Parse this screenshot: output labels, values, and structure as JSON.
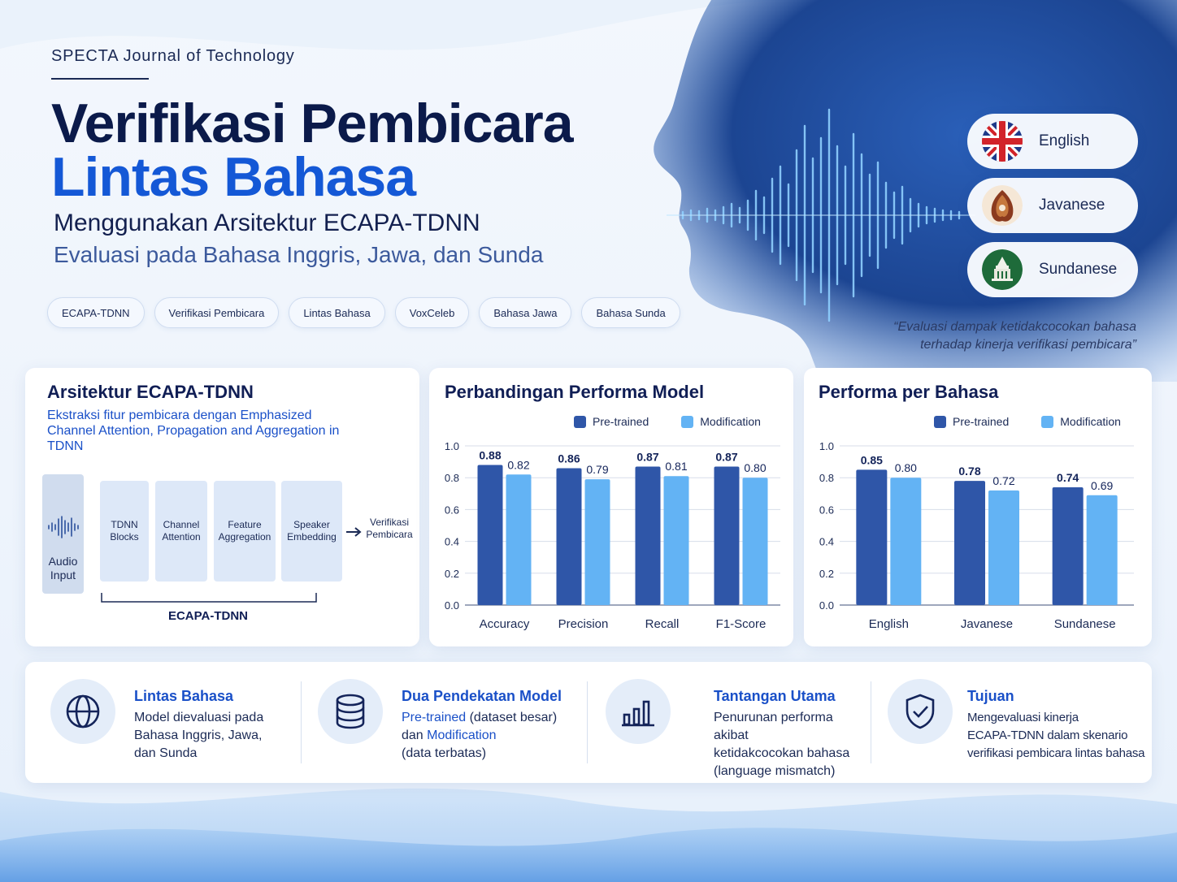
{
  "colors": {
    "navy": "#0b1a4a",
    "brand_blue": "#1458d6",
    "pretrained": "#2f56a8",
    "modification": "#63b3f4"
  },
  "header": {
    "journal": "SPECTA Journal of Technology",
    "title_line1": "Verifikasi Pembicara",
    "title_line2": "Lintas Bahasa",
    "subtitle1": "Menggunakan Arsitektur ECAPA-TDNN",
    "subtitle2": "Evaluasi pada Bahasa Inggris, Jawa, dan Sunda"
  },
  "tags": [
    "ECAPA-TDNN",
    "Verifikasi Pembicara",
    "Lintas Bahasa",
    "VoxCeleb",
    "Bahasa Jawa",
    "Bahasa Sunda"
  ],
  "languages": [
    {
      "label": "English",
      "icon": "uk-flag-icon"
    },
    {
      "label": "Javanese",
      "icon": "javanese-gunungan-icon"
    },
    {
      "label": "Sundanese",
      "icon": "sundanese-emblem-icon"
    }
  ],
  "quote": "“Evaluasi dampak ketidakcocokan bahasa terhadap kinerja verifikasi pembicara”",
  "architecture": {
    "title": "Arsitektur ECAPA-TDNN",
    "description": "Ekstraksi fitur pembicara dengan Emphasized Channel Attention, Propagation and Aggregation in TDNN",
    "input_label": "Audio Input",
    "blocks": [
      "TDNN Blocks",
      "Channel Attention",
      "Feature Aggregation",
      "Speaker Embedding"
    ],
    "output_label": "Verifikasi Pembicara",
    "group_label": "ECAPA-TDNN"
  },
  "chart_data": [
    {
      "type": "bar",
      "title": "Perbandingan Performa Model",
      "categories": [
        "Accuracy",
        "Precision",
        "Recall",
        "F1-Score"
      ],
      "series": [
        {
          "name": "Pre-trained",
          "values": [
            0.88,
            0.86,
            0.87,
            0.87
          ],
          "labels": [
            "0.88",
            "0.86",
            "0.87",
            "0.87"
          ]
        },
        {
          "name": "Modification",
          "values": [
            0.82,
            0.79,
            0.81,
            0.8
          ],
          "labels": [
            "0.82",
            "0.79",
            "0.81",
            "0.80"
          ]
        }
      ],
      "ylim": [
        0,
        1.0
      ],
      "yticks": [
        "0.0",
        "0.2",
        "0.4",
        "0.6",
        "0.8",
        "1.0"
      ],
      "grid": true,
      "legend": "top"
    },
    {
      "type": "bar",
      "title": "Performa per Bahasa",
      "categories": [
        "English",
        "Javanese",
        "Sundanese"
      ],
      "series": [
        {
          "name": "Pre-trained",
          "values": [
            0.85,
            0.78,
            0.74
          ],
          "labels": [
            "0.85",
            "0.78",
            "0.74"
          ]
        },
        {
          "name": "Modification",
          "values": [
            0.8,
            0.72,
            0.69
          ],
          "labels": [
            "0.80",
            "0.72",
            "0.69"
          ]
        }
      ],
      "ylim": [
        0,
        1.0
      ],
      "yticks": [
        "0.0",
        "0.2",
        "0.4",
        "0.6",
        "0.8",
        "1.0"
      ],
      "grid": true,
      "legend": "top"
    }
  ],
  "info": [
    {
      "title": "Lintas Bahasa",
      "icon": "globe-icon",
      "lines": [
        "Model dievaluasi pada",
        "Bahasa Inggris, Jawa,",
        "dan Sunda"
      ]
    },
    {
      "title": "Dua Pendekatan Model",
      "icon": "database-icon",
      "l1_hl": "Pre-trained",
      "l1_rest": " (dataset besar)",
      "l2_pre": "dan ",
      "l2_hl": "Modification",
      "l3": "(data terbatas)"
    },
    {
      "title": "Tantangan Utama",
      "icon": "bar-chart-icon",
      "lines": [
        "Penurunan performa akibat",
        "ketidakcocokan bahasa",
        "(language mismatch)"
      ]
    },
    {
      "title": "Tujuan",
      "icon": "shield-check-icon",
      "lines": [
        "Mengevaluasi kinerja",
        "ECAPA-TDNN dalam skenario",
        "verifikasi pembicara lintas bahasa"
      ]
    }
  ]
}
